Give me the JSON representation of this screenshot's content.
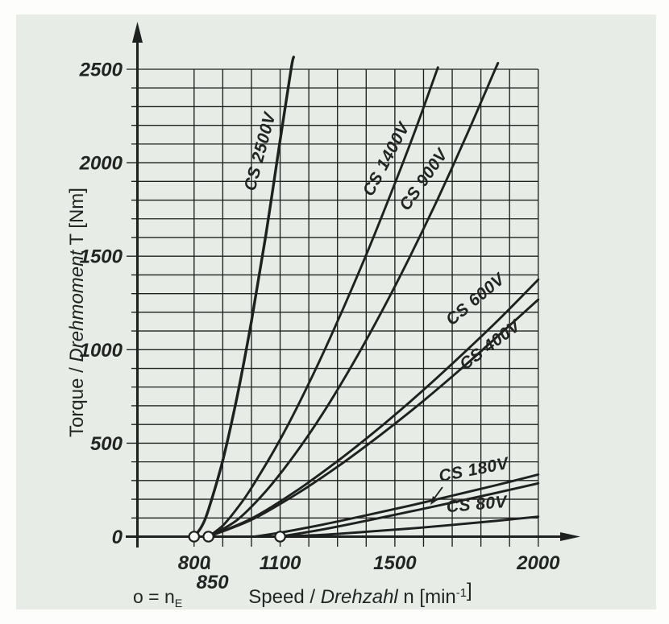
{
  "figure": {
    "panel_background": "#e8ece7",
    "page_background": "#fdfdfc",
    "line_color": "#1e211f",
    "text_color": "#242725"
  },
  "chart_data": {
    "type": "line",
    "title": "",
    "xlabel": "Speed / Drehzahl n [min-1]",
    "ylabel": "Torque / Drehmoment T [Nm]",
    "xlabel_parts": [
      {
        "t": "Speed / "
      },
      {
        "t": "Drehzahl",
        "i": true
      },
      {
        "t": " n [min"
      },
      {
        "t": "-1",
        "sup": true
      },
      {
        "t": "]"
      }
    ],
    "ylabel_parts": [
      {
        "t": "Torque / "
      },
      {
        "t": "Drehmoment",
        "i": true
      },
      {
        "t": " T [Nm]"
      }
    ],
    "marker_legend_parts": [
      {
        "t": "o = n"
      },
      {
        "t": "E",
        "sub": true
      }
    ],
    "x_axis": {
      "grid_min": 800,
      "grid_max": 2000,
      "grid_step": 100,
      "labeled_ticks": [
        {
          "label": "800",
          "n": 800
        },
        {
          "label": "1100",
          "n": 1100
        },
        {
          "label": "1500",
          "n": 1500
        },
        {
          "label": "2000",
          "n": 2000
        }
      ],
      "offset_tick": {
        "label": "850",
        "n": 850
      }
    },
    "y_axis": {
      "min": 0,
      "max": 2500,
      "grid_step": 100,
      "labeled_ticks": [
        {
          "label": "0",
          "t": 0
        },
        {
          "label": "500",
          "t": 500
        },
        {
          "label": "1000",
          "t": 1000
        },
        {
          "label": "1500",
          "t": 1500
        },
        {
          "label": "2000",
          "t": 2000
        },
        {
          "label": "2500",
          "t": 2500
        }
      ]
    },
    "engagement_markers": [
      800,
      850,
      1100
    ],
    "series": [
      {
        "name": "CS 2500V",
        "lines": [
          [
            [
              800,
              0
            ],
            [
              825,
              51
            ],
            [
              850,
              144
            ],
            [
              900,
              408
            ],
            [
              950,
              749
            ],
            [
              1000,
              1153
            ],
            [
              1050,
              1612
            ],
            [
              1100,
              2119
            ],
            [
              1138,
              2500
            ],
            [
              1147,
              2565
            ]
          ]
        ]
      },
      {
        "name": "CS 1400V",
        "lines": [
          [
            [
              850,
              0
            ],
            [
              900,
              59
            ],
            [
              950,
              151
            ],
            [
              1000,
              261
            ],
            [
              1100,
              519
            ],
            [
              1200,
              819
            ],
            [
              1300,
              1151
            ],
            [
              1400,
              1507
            ],
            [
              1500,
              1889
            ],
            [
              1575,
              2190
            ],
            [
              1650,
              2510
            ]
          ]
        ]
      },
      {
        "name": "CS 900V",
        "lines": [
          [
            [
              850,
              0
            ],
            [
              950,
              89
            ],
            [
              1050,
              243
            ],
            [
              1150,
              437
            ],
            [
              1250,
              662
            ],
            [
              1350,
              915
            ],
            [
              1450,
              1192
            ],
            [
              1550,
              1490
            ],
            [
              1650,
              1808
            ],
            [
              1750,
              2146
            ],
            [
              1850,
              2500
            ],
            [
              1856,
              2520
            ]
          ]
        ]
      },
      {
        "name": "CS 600V",
        "lines": [
          [
            [
              850,
              0
            ],
            [
              1000,
              97
            ],
            [
              1150,
              238
            ],
            [
              1300,
              404
            ],
            [
              1450,
              587
            ],
            [
              1600,
              785
            ],
            [
              1750,
              996
            ],
            [
              1875,
              1180
            ],
            [
              2000,
              1375
            ]
          ]
        ]
      },
      {
        "name": "CS 400V",
        "lines": [
          [
            [
              850,
              0
            ],
            [
              1000,
              90
            ],
            [
              1150,
              221
            ],
            [
              1300,
              374
            ],
            [
              1450,
              544
            ],
            [
              1600,
              727
            ],
            [
              1750,
              923
            ],
            [
              1875,
              1095
            ],
            [
              2000,
              1268
            ]
          ]
        ]
      },
      {
        "name": "CS 180V",
        "lines": [
          [
            [
              1010,
              0
            ],
            [
              1100,
              21
            ],
            [
              1250,
              65
            ],
            [
              1400,
              114
            ],
            [
              1550,
              165
            ],
            [
              1700,
              219
            ],
            [
              1850,
              274
            ],
            [
              2000,
              332
            ]
          ],
          [
            [
              1100,
              0
            ],
            [
              1250,
              39
            ],
            [
              1400,
              85
            ],
            [
              1550,
              133
            ],
            [
              1700,
              182
            ],
            [
              1850,
              233
            ],
            [
              2000,
              285
            ]
          ]
        ]
      },
      {
        "name": "CS 80V",
        "lines": [
          [
            [
              1100,
              0
            ],
            [
              1250,
              10
            ],
            [
              1400,
              26
            ],
            [
              1550,
              43
            ],
            [
              1700,
              63
            ],
            [
              1850,
              84
            ],
            [
              2000,
              107
            ]
          ]
        ]
      }
    ]
  }
}
